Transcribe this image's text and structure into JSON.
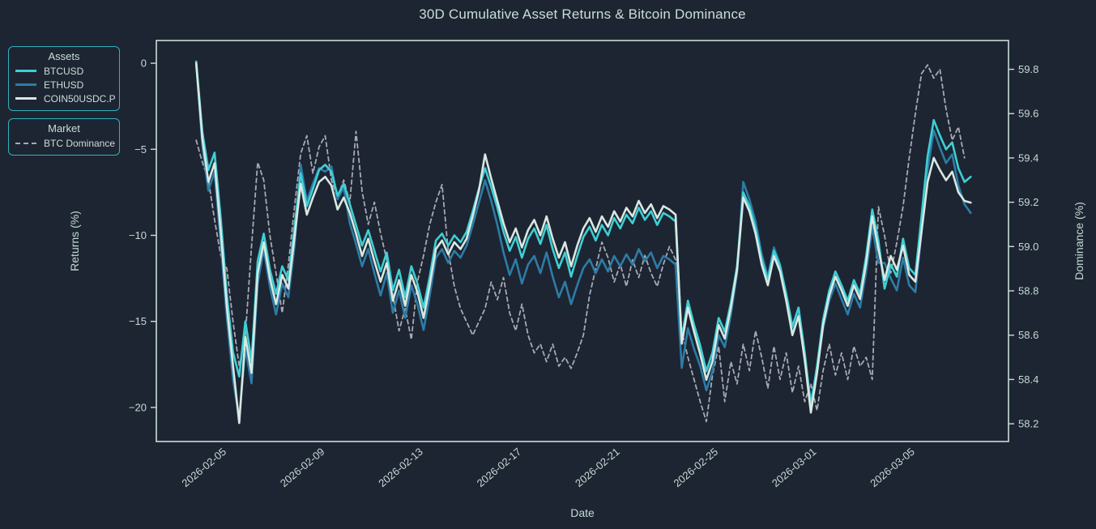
{
  "title": "30D Cumulative Asset Returns & Bitcoin Dominance",
  "colors": {
    "background": "#1d2532",
    "axis": "#c9ded9",
    "text": "#c5dad5",
    "legend_border": "#31b2bb",
    "btcusd": "#3ecfd4",
    "ethusd": "#2d7ca6",
    "coin50": "#d7e8e2",
    "dominance": "#a7a9b3"
  },
  "legend_assets": {
    "title": "Assets"
  },
  "legend_market": {
    "title": "Market"
  },
  "axes": {
    "x": {
      "label": "Date",
      "range": [
        -2.87,
        31.79
      ],
      "tick_t": [
        0,
        4,
        8,
        12,
        16,
        20,
        24,
        28
      ],
      "tick_labels": [
        "2026-02-05",
        "2026-02-09",
        "2026-02-13",
        "2026-02-17",
        "2026-02-21",
        "2026-02-25",
        "2026-03-01",
        "2026-03-05"
      ]
    },
    "y_left": {
      "label": "Returns (%)",
      "range": [
        -21.98,
        1.32
      ],
      "tick_values": [
        0,
        -5,
        -10,
        -15,
        -20
      ],
      "tick_labels": [
        "0",
        "−5",
        "−10",
        "−15",
        "−20"
      ]
    },
    "y_right": {
      "label": "Dominance (%)",
      "range": [
        58.12,
        59.93
      ],
      "tick_values": [
        59.8,
        59.6,
        59.4,
        59.2,
        59.0,
        58.8,
        58.6,
        58.4,
        58.2
      ],
      "tick_labels": [
        "59.8",
        "59.6",
        "59.4",
        "59.2",
        "59.0",
        "58.8",
        "58.6",
        "58.4",
        "58.2"
      ]
    }
  },
  "chart_data": {
    "type": "line",
    "title": "30D Cumulative Asset Returns & Bitcoin Dominance",
    "xlabel": "Date",
    "ylabel_left": "Returns (%)",
    "ylabel_right": "Dominance (%)",
    "grid": false,
    "legend_position": "outside-left",
    "x_unit": "days since 2026-02-05",
    "x_start": -1.25,
    "x_step": 0.25,
    "series": [
      {
        "name": "BTCUSD",
        "color": "#3ecfd4",
        "dash": "solid",
        "axis": "left",
        "width": 2.6,
        "values": [
          0.1,
          -4.0,
          -6.2,
          -5.2,
          -9.0,
          -13.5,
          -16.8,
          -18.2,
          -15.0,
          -17.3,
          -11.5,
          -9.9,
          -12.0,
          -13.4,
          -11.8,
          -12.6,
          -9.5,
          -6.4,
          -8.3,
          -7.3,
          -6.2,
          -5.9,
          -6.3,
          -7.7,
          -7.0,
          -8.2,
          -9.4,
          -10.6,
          -9.7,
          -10.9,
          -12.1,
          -11.0,
          -13.2,
          -12.0,
          -13.6,
          -11.8,
          -12.8,
          -14.2,
          -12.4,
          -10.3,
          -9.9,
          -10.6,
          -10.0,
          -10.4,
          -9.8,
          -8.6,
          -7.3,
          -6.1,
          -7.2,
          -8.4,
          -9.8,
          -10.9,
          -10.1,
          -11.3,
          -10.2,
          -9.6,
          -10.5,
          -9.4,
          -10.8,
          -11.9,
          -11.0,
          -12.4,
          -11.2,
          -10.1,
          -9.5,
          -10.3,
          -9.4,
          -10.0,
          -9.0,
          -9.6,
          -8.8,
          -9.3,
          -8.4,
          -9.1,
          -8.6,
          -9.4,
          -8.7,
          -8.9,
          -9.2,
          -16.0,
          -13.8,
          -15.2,
          -16.4,
          -17.9,
          -16.8,
          -14.8,
          -15.6,
          -13.9,
          -11.8,
          -7.5,
          -8.3,
          -9.6,
          -11.4,
          -12.6,
          -10.9,
          -11.8,
          -13.4,
          -15.3,
          -14.2,
          -16.8,
          -19.9,
          -17.6,
          -14.9,
          -13.2,
          -12.1,
          -12.9,
          -13.8,
          -12.6,
          -13.4,
          -11.2,
          -8.5,
          -10.3,
          -13.1,
          -11.7,
          -12.4,
          -10.2,
          -11.9,
          -12.3,
          -8.9,
          -5.4,
          -3.3,
          -4.2,
          -5.0,
          -4.6,
          -6.1,
          -6.9,
          -6.6
        ]
      },
      {
        "name": "ETHUSD",
        "color": "#2d7ca6",
        "dash": "solid",
        "axis": "left",
        "width": 2.6,
        "values": [
          0.0,
          -4.8,
          -7.4,
          -6.3,
          -10.5,
          -14.8,
          -18.4,
          -20.6,
          -16.6,
          -18.6,
          -12.8,
          -10.8,
          -13.0,
          -14.6,
          -12.8,
          -13.6,
          -10.6,
          -5.9,
          -8.0,
          -7.0,
          -6.1,
          -6.3,
          -6.0,
          -7.9,
          -7.2,
          -9.3,
          -10.5,
          -11.8,
          -10.8,
          -12.2,
          -13.5,
          -12.2,
          -14.5,
          -13.2,
          -14.8,
          -12.9,
          -14.0,
          -15.5,
          -13.5,
          -11.3,
          -10.8,
          -11.6,
          -10.9,
          -11.3,
          -10.6,
          -9.4,
          -8.1,
          -6.8,
          -8.0,
          -9.4,
          -11.0,
          -12.3,
          -11.4,
          -12.8,
          -11.7,
          -11.2,
          -12.2,
          -11.0,
          -12.4,
          -13.6,
          -12.7,
          -14.0,
          -12.9,
          -11.9,
          -11.4,
          -12.2,
          -11.4,
          -12.1,
          -11.2,
          -11.8,
          -11.1,
          -11.7,
          -10.8,
          -11.5,
          -11.0,
          -11.9,
          -11.2,
          -11.4,
          -11.7,
          -17.7,
          -15.4,
          -16.6,
          -17.6,
          -19.0,
          -17.9,
          -15.8,
          -16.5,
          -14.6,
          -12.2,
          -6.9,
          -7.9,
          -9.2,
          -11.1,
          -12.4,
          -10.7,
          -11.7,
          -13.5,
          -15.6,
          -14.6,
          -17.3,
          -19.6,
          -17.9,
          -15.4,
          -13.8,
          -12.8,
          -13.7,
          -14.6,
          -13.4,
          -14.2,
          -12.1,
          -9.5,
          -11.6,
          -11.6,
          -12.5,
          -13.2,
          -11.3,
          -12.9,
          -13.3,
          -9.8,
          -6.2,
          -3.9,
          -4.9,
          -5.8,
          -5.3,
          -7.1,
          -8.2,
          -8.7
        ]
      },
      {
        "name": "COIN50USDC.P",
        "color": "#d7e8e2",
        "dash": "solid",
        "axis": "left",
        "width": 2.6,
        "values": [
          0.0,
          -4.4,
          -6.9,
          -5.8,
          -9.8,
          -14.2,
          -17.6,
          -20.9,
          -15.9,
          -18.0,
          -12.2,
          -10.4,
          -12.5,
          -14.0,
          -12.3,
          -13.1,
          -10.1,
          -7.0,
          -8.8,
          -7.8,
          -6.9,
          -6.6,
          -7.1,
          -8.5,
          -7.8,
          -8.7,
          -9.9,
          -11.2,
          -10.2,
          -11.5,
          -12.7,
          -11.6,
          -13.8,
          -12.6,
          -14.1,
          -12.3,
          -13.3,
          -14.8,
          -12.9,
          -10.8,
          -10.3,
          -11.1,
          -10.4,
          -10.8,
          -10.2,
          -8.9,
          -7.4,
          -5.3,
          -6.7,
          -8.0,
          -9.3,
          -10.4,
          -9.6,
          -10.7,
          -9.7,
          -9.1,
          -10.0,
          -8.9,
          -10.2,
          -11.3,
          -10.4,
          -11.8,
          -10.6,
          -9.6,
          -9.0,
          -9.8,
          -8.9,
          -9.5,
          -8.6,
          -9.2,
          -8.4,
          -8.9,
          -8.0,
          -8.7,
          -8.2,
          -9.0,
          -8.3,
          -8.5,
          -8.8,
          -16.3,
          -14.2,
          -15.6,
          -16.9,
          -18.4,
          -17.3,
          -15.2,
          -16.0,
          -14.2,
          -12.0,
          -7.8,
          -8.6,
          -9.9,
          -11.7,
          -12.9,
          -11.2,
          -12.1,
          -13.8,
          -15.8,
          -14.7,
          -17.2,
          -20.3,
          -18.0,
          -15.2,
          -13.5,
          -12.4,
          -13.2,
          -14.1,
          -12.9,
          -13.7,
          -11.6,
          -8.9,
          -10.8,
          -12.6,
          -11.2,
          -12.0,
          -10.6,
          -12.3,
          -12.7,
          -9.8,
          -6.9,
          -5.5,
          -6.2,
          -6.8,
          -6.3,
          -7.5,
          -8.0,
          -8.1
        ]
      },
      {
        "name": "BTC Dominance",
        "color": "#a7a9b3",
        "dash": "dash",
        "axis": "right",
        "width": 1.8,
        "values": [
          59.48,
          59.38,
          59.3,
          59.12,
          58.96,
          58.9,
          58.66,
          58.46,
          58.6,
          59.0,
          59.38,
          59.3,
          59.05,
          58.88,
          58.7,
          58.92,
          59.18,
          59.42,
          59.5,
          59.33,
          59.45,
          59.5,
          59.3,
          59.22,
          59.3,
          59.2,
          59.52,
          59.25,
          59.1,
          59.2,
          59.06,
          58.94,
          58.78,
          58.62,
          58.72,
          58.58,
          58.84,
          58.96,
          59.1,
          59.2,
          59.28,
          58.98,
          58.82,
          58.72,
          58.66,
          58.6,
          58.66,
          58.72,
          58.84,
          58.76,
          58.86,
          58.7,
          58.62,
          58.74,
          58.6,
          58.52,
          58.56,
          58.48,
          58.56,
          58.46,
          58.5,
          58.45,
          58.52,
          58.6,
          58.78,
          58.9,
          59.02,
          58.95,
          58.84,
          58.92,
          58.82,
          58.94,
          58.86,
          58.96,
          58.88,
          58.82,
          58.92,
          59.0,
          58.94,
          58.62,
          58.5,
          58.4,
          58.3,
          58.21,
          58.42,
          58.55,
          58.3,
          58.48,
          58.38,
          58.56,
          58.44,
          58.62,
          58.5,
          58.36,
          58.55,
          58.4,
          58.52,
          58.34,
          58.46,
          58.3,
          58.38,
          58.26,
          58.44,
          58.56,
          58.42,
          58.52,
          58.4,
          58.55,
          58.46,
          58.5,
          58.4,
          59.18,
          59.05,
          58.88,
          59.02,
          59.18,
          59.4,
          59.6,
          59.78,
          59.82,
          59.76,
          59.8,
          59.62,
          59.48,
          59.54,
          59.4
        ]
      }
    ]
  }
}
